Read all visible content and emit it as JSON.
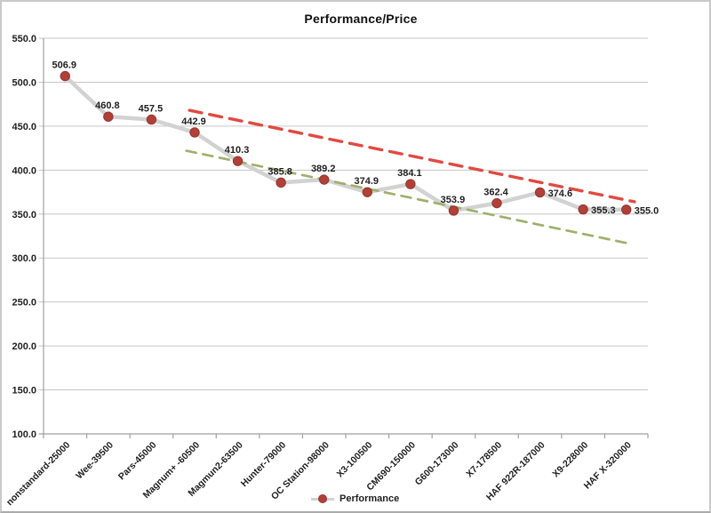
{
  "chart_data": {
    "type": "line",
    "title": "Performance/Price",
    "categories": [
      "nonstandard-25000",
      "Wee-39500",
      "Pars-45000",
      "Magnum+ -60500",
      "Magmun2-63500",
      "Hunter-79000",
      "OC Station-98000",
      "X3-100500",
      "CM690-150000",
      "G600-173000",
      "X7-178500",
      "HAF 922R-187000",
      "X9-228000",
      "HAF X-320000"
    ],
    "series": [
      {
        "name": "Performance",
        "values": [
          506.9,
          460.8,
          457.5,
          442.9,
          410.3,
          385.8,
          389.2,
          374.9,
          384.1,
          353.9,
          362.4,
          374.6,
          355.3,
          355.0
        ],
        "labels": [
          "506.9",
          "460.8",
          "457.5",
          "442.9",
          "410.3",
          "385.8",
          "389.2",
          "374.9",
          "384.1",
          "353.9",
          "362.4",
          "374.6",
          "355.3",
          "355.0"
        ],
        "line_color": "#d2d2d2",
        "marker_color": "#b04038",
        "marker_edge_color": "#953630"
      }
    ],
    "trendlines": [
      {
        "name": "upper-trendline",
        "color": "#e04a41",
        "style": "dashed",
        "start_index": 2.88,
        "start_value": 468,
        "end_index": 13.19,
        "end_value": 364
      },
      {
        "name": "lower-trendline",
        "color": "#a1af6c",
        "style": "dashed",
        "start_index": 2.81,
        "start_value": 422,
        "end_index": 13.11,
        "end_value": 316
      }
    ],
    "xlabel": "",
    "ylabel": "",
    "ylim": [
      100,
      550
    ],
    "ytick_step": 50,
    "ytick_labels": [
      "550.0",
      "500.0",
      "450.0",
      "400.0",
      "350.0",
      "300.0",
      "250.0",
      "200.0",
      "150.0",
      "100.0"
    ],
    "grid": true,
    "legend_position": "bottom",
    "right_side_label_indices": [
      11,
      12,
      13
    ],
    "colors": {
      "gridline": "#c6c6c6",
      "axis": "#9f9f9f",
      "text": "#1f1f1f",
      "background": "#ffffff"
    }
  }
}
